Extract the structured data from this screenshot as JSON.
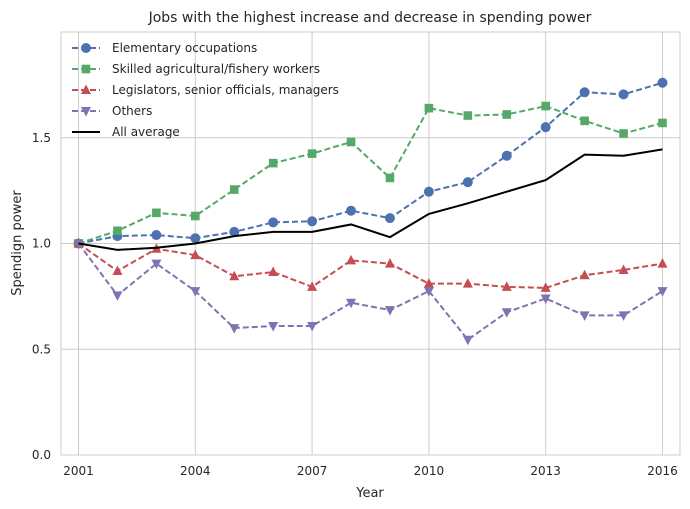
{
  "chart_data": {
    "type": "line",
    "title": "Jobs with the highest increase and decrease in spending power",
    "xlabel": "Year",
    "ylabel": "Spendign power",
    "xlim": [
      2000.55,
      2016.45
    ],
    "ylim": [
      0.0,
      2.0
    ],
    "xticks": [
      2001,
      2004,
      2007,
      2010,
      2013,
      2016
    ],
    "yticks": [
      "0.0",
      "0.5",
      "1.0",
      "1.5"
    ],
    "grid": true,
    "legend_position": "top-left",
    "x": [
      2001,
      2002,
      2003,
      2004,
      2005,
      2006,
      2007,
      2008,
      2009,
      2010,
      2011,
      2012,
      2013,
      2014,
      2015,
      2016
    ],
    "series": [
      {
        "name": "Elementary occupations",
        "color": "#4c72b0",
        "marker": "circle",
        "line": "dashed",
        "values": [
          1.0,
          1.035,
          1.04,
          1.025,
          1.055,
          1.1,
          1.105,
          1.155,
          1.12,
          1.245,
          1.29,
          1.415,
          1.55,
          1.715,
          1.705,
          1.76
        ]
      },
      {
        "name": "Skilled agricultural/fishery workers",
        "color": "#55a868",
        "marker": "square",
        "line": "dashed",
        "values": [
          1.0,
          1.06,
          1.145,
          1.13,
          1.255,
          1.38,
          1.425,
          1.48,
          1.31,
          1.64,
          1.605,
          1.61,
          1.65,
          1.58,
          1.52,
          1.57
        ]
      },
      {
        "name": "Legislators, senior officials, managers",
        "color": "#c44e52",
        "marker": "triangle-up",
        "line": "dashed",
        "values": [
          1.0,
          0.87,
          0.975,
          0.945,
          0.845,
          0.865,
          0.795,
          0.92,
          0.905,
          0.81,
          0.81,
          0.795,
          0.79,
          0.85,
          0.875,
          0.905
        ]
      },
      {
        "name": "Others",
        "color": "#8172b2",
        "marker": "triangle-down",
        "line": "dashed",
        "values": [
          1.0,
          0.755,
          0.905,
          0.775,
          0.6,
          0.61,
          0.61,
          0.72,
          0.685,
          0.775,
          0.545,
          0.675,
          0.74,
          0.66,
          0.66,
          0.775
        ]
      },
      {
        "name": "All average",
        "color": "#000000",
        "marker": "none",
        "line": "solid",
        "values": [
          1.0,
          0.97,
          0.98,
          1.0,
          1.035,
          1.055,
          1.055,
          1.09,
          1.03,
          1.14,
          1.19,
          1.245,
          1.3,
          1.42,
          1.415,
          1.445
        ]
      }
    ]
  }
}
